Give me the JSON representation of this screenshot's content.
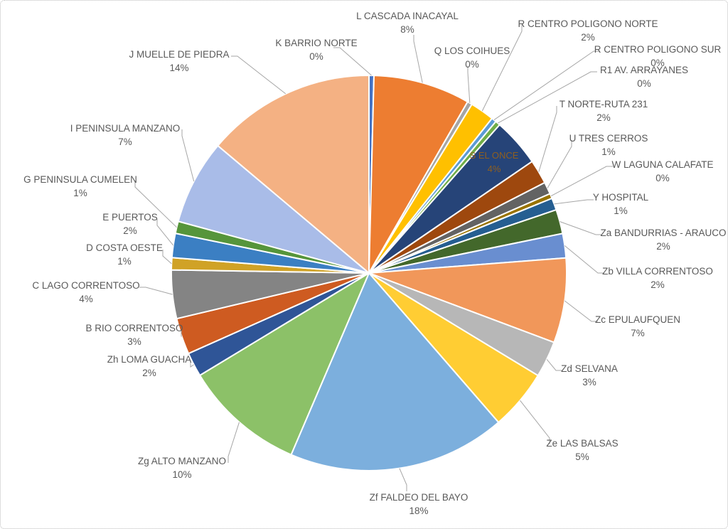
{
  "figure": {
    "background_color": "#FFFFFF",
    "border_color": "#BDBDBD"
  },
  "chart_data": {
    "type": "pie",
    "title": "",
    "legend_position": "none",
    "direction": "clockwise",
    "start_angle_deg": 0,
    "label_format": "category name + percentage",
    "label_text_color": "#595959",
    "leader_line_color": "#A6A6A6",
    "inside_label_color": "#8F5F1F",
    "slice_gap_color": "#FFFFFF",
    "zero_slice_render_pct": 0.4,
    "slices": [
      {
        "label": "K BARRIO NORTE",
        "pct_label": "0%",
        "value": 0,
        "color": "#4472C4",
        "placement": "outside"
      },
      {
        "label": "L CASCADA INACAYAL",
        "pct_label": "8%",
        "value": 8,
        "color": "#ED7D31",
        "placement": "outside"
      },
      {
        "label": "Q LOS COIHUES",
        "pct_label": "0%",
        "value": 0,
        "color": "#A5A5A5",
        "placement": "outside"
      },
      {
        "label": "R CENTRO POLIGONO NORTE",
        "pct_label": "2%",
        "value": 2,
        "color": "#FFC000",
        "placement": "outside"
      },
      {
        "label": "R CENTRO POLIGONO SUR",
        "pct_label": "0%",
        "value": 0,
        "color": "#5B9BD5",
        "placement": "outside"
      },
      {
        "label": "R1 AV. ARRAYANES",
        "pct_label": "0%",
        "value": 0,
        "color": "#70AD47",
        "placement": "outside"
      },
      {
        "label": "S EL ONCE",
        "pct_label": "4%",
        "value": 4,
        "color": "#264478",
        "placement": "inside"
      },
      {
        "label": "T NORTE-RUTA 231",
        "pct_label": "2%",
        "value": 2,
        "color": "#9E480E",
        "placement": "outside"
      },
      {
        "label": "U TRES CERROS",
        "pct_label": "1%",
        "value": 1,
        "color": "#636363",
        "placement": "outside"
      },
      {
        "label": "W LAGUNA CALAFATE",
        "pct_label": "0%",
        "value": 0,
        "color": "#997300",
        "placement": "outside"
      },
      {
        "label": "Y HOSPITAL",
        "pct_label": "1%",
        "value": 1,
        "color": "#255E91",
        "placement": "outside"
      },
      {
        "label": "Za BANDURRIAS - ARAUCO",
        "pct_label": "2%",
        "value": 2,
        "color": "#43682B",
        "placement": "outside"
      },
      {
        "label": "Zb VILLA CORRENTOSO",
        "pct_label": "2%",
        "value": 2,
        "color": "#698ED0",
        "placement": "outside"
      },
      {
        "label": "Zc EPULAUFQUEN",
        "pct_label": "7%",
        "value": 7,
        "color": "#F1975A",
        "placement": "outside"
      },
      {
        "label": "Zd SELVANA",
        "pct_label": "3%",
        "value": 3,
        "color": "#B7B7B7",
        "placement": "outside"
      },
      {
        "label": "Ze LAS BALSAS",
        "pct_label": "5%",
        "value": 5,
        "color": "#FFCD33",
        "placement": "outside"
      },
      {
        "label": "Zf FALDEO DEL BAYO",
        "pct_label": "18%",
        "value": 18,
        "color": "#7CAFDD",
        "placement": "outside"
      },
      {
        "label": "Zg ALTO MANZANO",
        "pct_label": "10%",
        "value": 10,
        "color": "#8CC168",
        "placement": "outside"
      },
      {
        "label": "Zh LOMA GUACHA",
        "pct_label": "2%",
        "value": 2,
        "color": "#2F5597",
        "placement": "outside"
      },
      {
        "label": "B RIO CORRENTOSO",
        "pct_label": "3%",
        "value": 3,
        "color": "#CE5B21",
        "placement": "outside"
      },
      {
        "label": "C LAGO CORRENTOSO",
        "pct_label": "4%",
        "value": 4,
        "color": "#848484",
        "placement": "outside"
      },
      {
        "label": "D COSTA OESTE",
        "pct_label": "1%",
        "value": 1,
        "color": "#D0A226",
        "placement": "outside"
      },
      {
        "label": "E PUERTOS",
        "pct_label": "2%",
        "value": 2,
        "color": "#3B7FC3",
        "placement": "outside"
      },
      {
        "label": "G PENINSULA CUMELEN",
        "pct_label": "1%",
        "value": 1,
        "color": "#56953B",
        "placement": "outside"
      },
      {
        "label": "I PENINSULA MANZANO",
        "pct_label": "7%",
        "value": 7,
        "color": "#A9BCE8",
        "placement": "outside"
      },
      {
        "label": "J MUELLE DE PIEDRA",
        "pct_label": "14%",
        "value": 14,
        "color": "#F4B183",
        "placement": "outside"
      }
    ]
  }
}
